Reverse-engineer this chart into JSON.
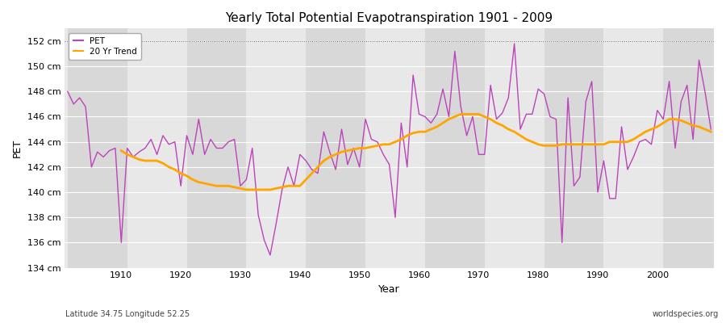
{
  "title": "Yearly Total Potential Evapotranspiration 1901 - 2009",
  "xlabel": "Year",
  "ylabel": "PET",
  "bottom_left_label": "Latitude 34.75 Longitude 52.25",
  "bottom_right_label": "worldspecies.org",
  "pet_color": "#bb44bb",
  "trend_color": "#ffa500",
  "bg_color": "#e0e0e0",
  "ylim": [
    134,
    153
  ],
  "ytick_labels": [
    "134 cm",
    "136 cm",
    "138 cm",
    "140 cm",
    "142 cm",
    "144 cm",
    "146 cm",
    "148 cm",
    "150 cm",
    "152 cm"
  ],
  "ytick_values": [
    134,
    136,
    138,
    140,
    142,
    144,
    146,
    148,
    150,
    152
  ],
  "years": [
    1901,
    1902,
    1903,
    1904,
    1905,
    1906,
    1907,
    1908,
    1909,
    1910,
    1911,
    1912,
    1913,
    1914,
    1915,
    1916,
    1917,
    1918,
    1919,
    1920,
    1921,
    1922,
    1923,
    1924,
    1925,
    1926,
    1927,
    1928,
    1929,
    1930,
    1931,
    1932,
    1933,
    1934,
    1935,
    1936,
    1937,
    1938,
    1939,
    1940,
    1941,
    1942,
    1943,
    1944,
    1945,
    1946,
    1947,
    1948,
    1949,
    1950,
    1951,
    1952,
    1953,
    1954,
    1955,
    1956,
    1957,
    1958,
    1959,
    1960,
    1961,
    1962,
    1963,
    1964,
    1965,
    1966,
    1967,
    1968,
    1969,
    1970,
    1971,
    1972,
    1973,
    1974,
    1975,
    1976,
    1977,
    1978,
    1979,
    1980,
    1981,
    1982,
    1983,
    1984,
    1985,
    1986,
    1987,
    1988,
    1989,
    1990,
    1991,
    1992,
    1993,
    1994,
    1995,
    1996,
    1997,
    1998,
    1999,
    2000,
    2001,
    2002,
    2003,
    2004,
    2005,
    2006,
    2007,
    2008,
    2009
  ],
  "pet_values": [
    148.0,
    147.0,
    147.5,
    146.8,
    142.0,
    143.2,
    142.8,
    143.3,
    143.5,
    136.0,
    143.5,
    142.8,
    143.2,
    143.5,
    144.2,
    143.0,
    144.5,
    143.8,
    144.0,
    140.5,
    144.5,
    143.0,
    145.8,
    143.0,
    144.2,
    143.5,
    143.5,
    144.0,
    144.2,
    140.5,
    141.0,
    143.5,
    138.2,
    136.2,
    135.0,
    137.5,
    140.2,
    142.0,
    140.5,
    143.0,
    142.5,
    141.8,
    141.5,
    144.8,
    143.2,
    141.8,
    145.0,
    142.2,
    143.5,
    142.0,
    145.8,
    144.2,
    144.0,
    143.0,
    142.2,
    138.0,
    145.5,
    142.0,
    149.3,
    146.2,
    146.0,
    145.5,
    146.2,
    148.2,
    146.0,
    151.2,
    146.8,
    144.5,
    146.0,
    143.0,
    143.0,
    148.5,
    145.8,
    146.3,
    147.5,
    151.8,
    145.0,
    146.2,
    146.2,
    148.2,
    147.8,
    146.0,
    145.8,
    136.0,
    147.5,
    140.5,
    141.2,
    147.2,
    148.8,
    140.0,
    142.5,
    139.5,
    139.5,
    145.2,
    141.8,
    142.8,
    144.0,
    144.2,
    143.8,
    146.5,
    145.8,
    148.8,
    143.5,
    147.2,
    148.5,
    144.2,
    150.5,
    148.0,
    145.0
  ],
  "trend_values": [
    null,
    null,
    null,
    null,
    null,
    null,
    null,
    null,
    null,
    143.3,
    143.0,
    142.8,
    142.6,
    142.5,
    142.5,
    142.5,
    142.3,
    142.0,
    141.8,
    141.5,
    141.3,
    141.0,
    140.8,
    140.7,
    140.6,
    140.5,
    140.5,
    140.5,
    140.4,
    140.3,
    140.2,
    140.2,
    140.2,
    140.2,
    140.2,
    140.3,
    140.4,
    140.5,
    140.5,
    140.5,
    141.0,
    141.5,
    142.0,
    142.5,
    142.8,
    143.0,
    143.2,
    143.3,
    143.4,
    143.5,
    143.5,
    143.6,
    143.7,
    143.8,
    143.8,
    144.0,
    144.2,
    144.5,
    144.7,
    144.8,
    144.8,
    145.0,
    145.2,
    145.5,
    145.8,
    146.0,
    146.2,
    146.2,
    146.2,
    146.2,
    146.0,
    145.8,
    145.5,
    145.3,
    145.0,
    144.8,
    144.5,
    144.2,
    144.0,
    143.8,
    143.7,
    143.7,
    143.7,
    143.8,
    143.8,
    143.8,
    143.8,
    143.8,
    143.8,
    143.8,
    143.8,
    144.0,
    144.0,
    144.0,
    144.0,
    144.2,
    144.5,
    144.8,
    145.0,
    145.2,
    145.5,
    145.8,
    145.8,
    145.7,
    145.5,
    145.3,
    145.2,
    145.0,
    144.8
  ],
  "band_decades": [
    1901,
    1911,
    1921,
    1931,
    1941,
    1951,
    1961,
    1971,
    1981,
    1991,
    2001,
    2010
  ],
  "band_colors": [
    "#d8d8d8",
    "#e8e8e8",
    "#d8d8d8",
    "#e8e8e8",
    "#d8d8d8",
    "#e8e8e8",
    "#d8d8d8",
    "#e8e8e8",
    "#d8d8d8",
    "#e8e8e8",
    "#d8d8d8"
  ]
}
